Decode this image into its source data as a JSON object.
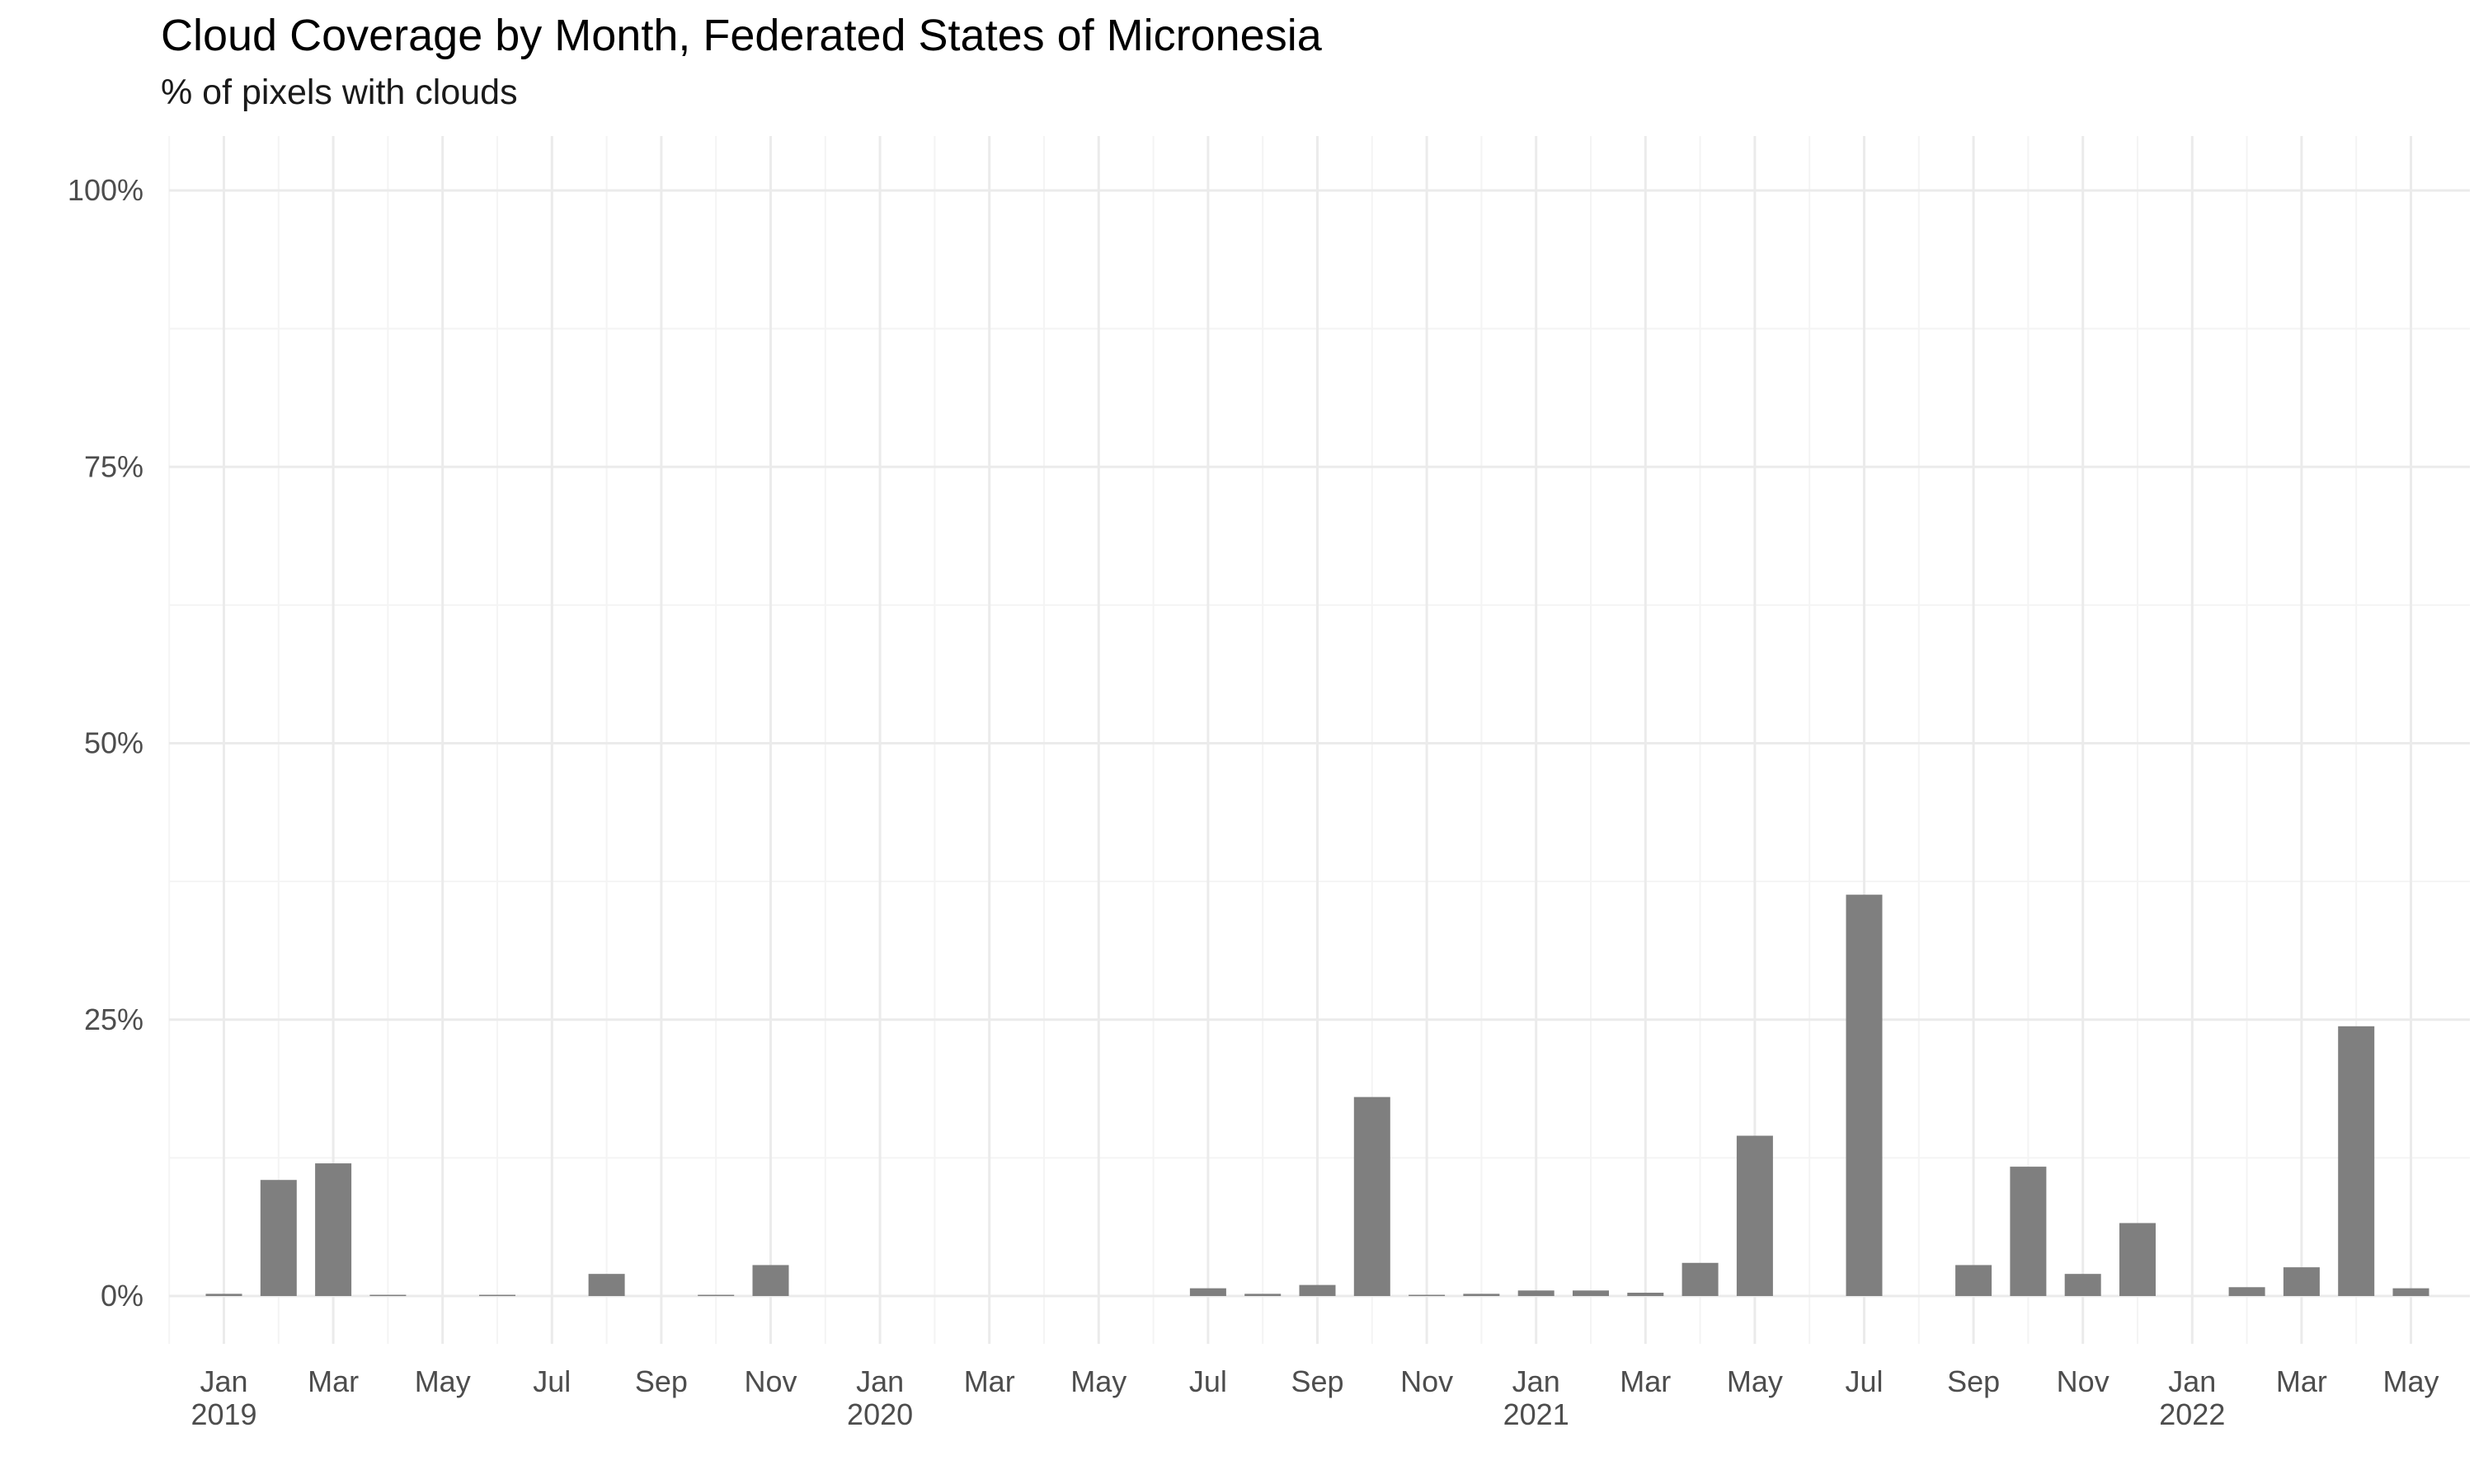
{
  "chart_data": {
    "type": "bar",
    "title": "Cloud Coverage by Month, Federated States of Micronesia",
    "subtitle": "% of pixels with clouds",
    "xlabel": "",
    "ylabel": "",
    "ylim": [
      0,
      100
    ],
    "y_ticks": [
      "0%",
      "25%",
      "50%",
      "75%",
      "100%"
    ],
    "grid": true,
    "x_ticks": [
      {
        "month": "Jan",
        "year": "2019"
      },
      {
        "month": "Mar",
        "year": ""
      },
      {
        "month": "May",
        "year": ""
      },
      {
        "month": "Jul",
        "year": ""
      },
      {
        "month": "Sep",
        "year": ""
      },
      {
        "month": "Nov",
        "year": ""
      },
      {
        "month": "Jan",
        "year": "2020"
      },
      {
        "month": "Mar",
        "year": ""
      },
      {
        "month": "May",
        "year": ""
      },
      {
        "month": "Jul",
        "year": ""
      },
      {
        "month": "Sep",
        "year": ""
      },
      {
        "month": "Nov",
        "year": ""
      },
      {
        "month": "Jan",
        "year": "2021"
      },
      {
        "month": "Mar",
        "year": ""
      },
      {
        "month": "May",
        "year": ""
      },
      {
        "month": "Jul",
        "year": ""
      },
      {
        "month": "Sep",
        "year": ""
      },
      {
        "month": "Nov",
        "year": ""
      },
      {
        "month": "Jan",
        "year": "2022"
      },
      {
        "month": "Mar",
        "year": ""
      },
      {
        "month": "May",
        "year": ""
      }
    ],
    "bar_color": "#7f7f7f",
    "bars": [
      {
        "date": "2019-01",
        "value": 0.2
      },
      {
        "date": "2019-02",
        "value": 10.5
      },
      {
        "date": "2019-03",
        "value": 12.0
      },
      {
        "date": "2019-04",
        "value": 0.1
      },
      {
        "date": "2019-06",
        "value": 0.1
      },
      {
        "date": "2019-08",
        "value": 2.0
      },
      {
        "date": "2019-10",
        "value": 0.1
      },
      {
        "date": "2019-11",
        "value": 2.8
      },
      {
        "date": "2020-07",
        "value": 0.7
      },
      {
        "date": "2020-08",
        "value": 0.2
      },
      {
        "date": "2020-09",
        "value": 1.0
      },
      {
        "date": "2020-10",
        "value": 18.0
      },
      {
        "date": "2020-11",
        "value": 0.1
      },
      {
        "date": "2020-12",
        "value": 0.2
      },
      {
        "date": "2021-01",
        "value": 0.5
      },
      {
        "date": "2021-02",
        "value": 0.5
      },
      {
        "date": "2021-03",
        "value": 0.3
      },
      {
        "date": "2021-04",
        "value": 3.0
      },
      {
        "date": "2021-05",
        "value": 14.5
      },
      {
        "date": "2021-07",
        "value": 36.3
      },
      {
        "date": "2021-09",
        "value": 2.8
      },
      {
        "date": "2021-10",
        "value": 11.7
      },
      {
        "date": "2021-11",
        "value": 2.0
      },
      {
        "date": "2021-12",
        "value": 6.6
      },
      {
        "date": "2022-02",
        "value": 0.8
      },
      {
        "date": "2022-03",
        "value": 2.6
      },
      {
        "date": "2022-04",
        "value": 24.4
      },
      {
        "date": "2022-05",
        "value": 0.7
      }
    ]
  }
}
